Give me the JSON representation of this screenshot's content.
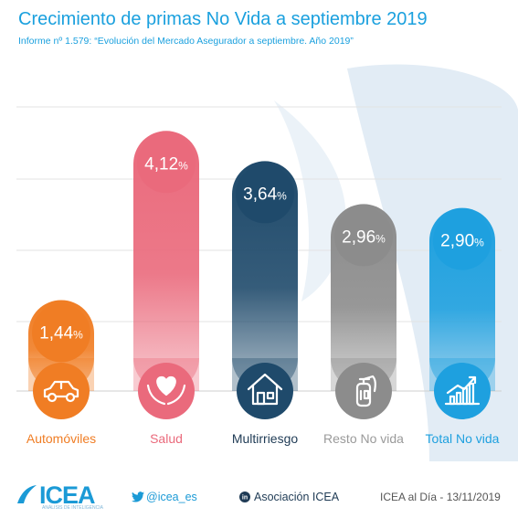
{
  "title": "Crecimiento de primas No Vida a septiembre 2019",
  "subtitle": "Informe nº 1.579: “Evolución del Mercado Asegurador a septiembre. Año 2019”",
  "chart_data": {
    "type": "bar",
    "categories": [
      "Automóviles",
      "Salud",
      "Multirriesgo",
      "Resto No vida",
      "Total No vida"
    ],
    "values": [
      1.44,
      4.12,
      3.64,
      2.96,
      2.9
    ],
    "value_labels": [
      "1,44",
      "4,12",
      "3,64",
      "2,96",
      "2,90"
    ],
    "unit": "%",
    "colors": [
      "#f07d24",
      "#ea6a7c",
      "#1f4a6b",
      "#8c8c8c",
      "#1ea0df"
    ],
    "label_colors": [
      "#f07d24",
      "#ea6a7c",
      "#1f3b55",
      "#9a9a9a",
      "#1ea0df"
    ],
    "icons": [
      "car-icon",
      "heart-hands-icon",
      "house-icon",
      "fire-extinguisher-icon",
      "growth-chart-icon"
    ],
    "ylim": [
      0,
      4.5
    ],
    "grid": true
  },
  "footer": {
    "logo": "ICEA",
    "logo_sub": "ANÁLISIS DE INTELIGENCIA",
    "twitter": "@icea_es",
    "linkedin": "Asociación ICEA",
    "date": "ICEA al Día - 13/11/2019"
  }
}
